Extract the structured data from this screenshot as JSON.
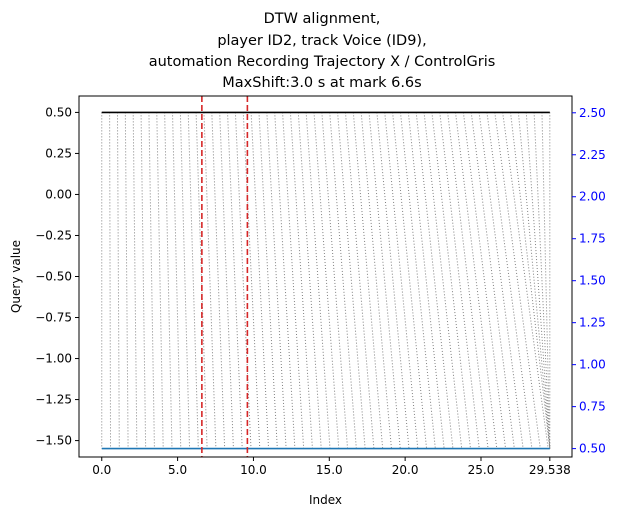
{
  "chart_data": {
    "type": "line",
    "title_lines": [
      "DTW alignment,",
      "player ID2, track Voice (ID9),",
      "automation Recording Trajectory X / ControlGris",
      "MaxShift:3.0 s at mark 6.6s"
    ],
    "xlabel": "Index",
    "ylabel": "Query value",
    "xlim": [
      -1.5,
      31.0
    ],
    "ylim": [
      -1.6,
      0.6
    ],
    "ylim_right": [
      0.45,
      2.6
    ],
    "x_ticks": [
      {
        "value": 0.0,
        "label": "0.0"
      },
      {
        "value": 5.0,
        "label": "5.0"
      },
      {
        "value": 10.0,
        "label": "10.0"
      },
      {
        "value": 15.0,
        "label": "15.0"
      },
      {
        "value": 20.0,
        "label": "20.0"
      },
      {
        "value": 25.0,
        "label": "25.0"
      },
      {
        "value": 29.538,
        "label": "29.538"
      }
    ],
    "y_ticks_left": [
      {
        "value": 0.5,
        "label": "0.50"
      },
      {
        "value": 0.25,
        "label": "0.25"
      },
      {
        "value": 0.0,
        "label": "0.00"
      },
      {
        "value": -0.25,
        "label": "−0.25"
      },
      {
        "value": -0.5,
        "label": "−0.50"
      },
      {
        "value": -0.75,
        "label": "−0.75"
      },
      {
        "value": -1.0,
        "label": "−1.00"
      },
      {
        "value": -1.25,
        "label": "−1.25"
      },
      {
        "value": -1.5,
        "label": "−1.50"
      }
    ],
    "y_ticks_right": [
      {
        "value": 2.5,
        "label": "2.50"
      },
      {
        "value": 2.25,
        "label": "2.25"
      },
      {
        "value": 2.0,
        "label": "2.00"
      },
      {
        "value": 1.75,
        "label": "1.75"
      },
      {
        "value": 1.5,
        "label": "1.50"
      },
      {
        "value": 1.25,
        "label": "1.25"
      },
      {
        "value": 1.0,
        "label": "1.00"
      },
      {
        "value": 0.75,
        "label": "0.75"
      },
      {
        "value": 0.5,
        "label": "0.50"
      }
    ],
    "series": [
      {
        "axis": "left",
        "x": [
          0.0,
          29.538
        ],
        "y": [
          0.5,
          0.5
        ],
        "color": "#000000"
      },
      {
        "axis": "right",
        "x": [
          0.0,
          29.538
        ],
        "y": [
          0.5,
          0.5
        ],
        "color": "#1f77b4"
      }
    ],
    "alignment": {
      "count": 58,
      "query_x_range": [
        0.0,
        29.538
      ],
      "max_shift": 3.0,
      "color": "#808080",
      "style": "dotted"
    },
    "vlines": [
      {
        "x": 6.6,
        "color": "#d62728",
        "style": "dashed"
      },
      {
        "x": 9.6,
        "color": "#d62728",
        "style": "dashed"
      }
    ],
    "grid": false,
    "right_axis_color": "#0000ff"
  }
}
